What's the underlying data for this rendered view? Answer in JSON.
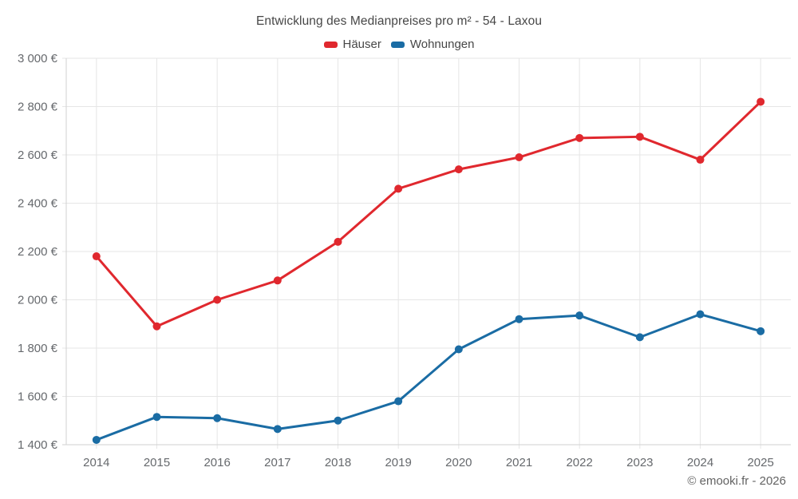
{
  "title": "Entwicklung des Medianpreises pro m² - 54 - Laxou",
  "footer": "© emooki.fr - 2026",
  "legend": [
    {
      "label": "Häuser",
      "color": "#e0282e"
    },
    {
      "label": "Wohnungen",
      "color": "#1a6ca4"
    }
  ],
  "chart_data": {
    "type": "line",
    "title": "Entwicklung des Medianpreises pro m² - 54 - Laxou",
    "categories": [
      "2014",
      "2015",
      "2016",
      "2017",
      "2018",
      "2019",
      "2020",
      "2021",
      "2022",
      "2023",
      "2024",
      "2025"
    ],
    "series": [
      {
        "name": "Häuser",
        "color": "#e0282e",
        "values": [
          2180,
          1890,
          2000,
          2080,
          2240,
          2460,
          2540,
          2590,
          2670,
          2675,
          2580,
          2820
        ]
      },
      {
        "name": "Wohnungen",
        "color": "#1a6ca4",
        "values": [
          1420,
          1515,
          1510,
          1465,
          1500,
          1580,
          1795,
          1920,
          1935,
          1845,
          1940,
          1870
        ]
      }
    ],
    "xlabel": "",
    "ylabel": "",
    "ylim": [
      1400,
      3000
    ],
    "y_ticks": [
      3000,
      2800,
      2600,
      2400,
      2200,
      2000,
      1800,
      1600,
      1400
    ],
    "y_tick_labels": [
      "3 000 €",
      "2 800 €",
      "2 600 €",
      "2 400 €",
      "2 200 €",
      "2 000 €",
      "1 800 €",
      "1 600 €",
      "1 400 €"
    ],
    "grid": true,
    "legend_position": "top",
    "grid_color": "#e6e6e6",
    "axis_color": "#d2d2d2"
  }
}
